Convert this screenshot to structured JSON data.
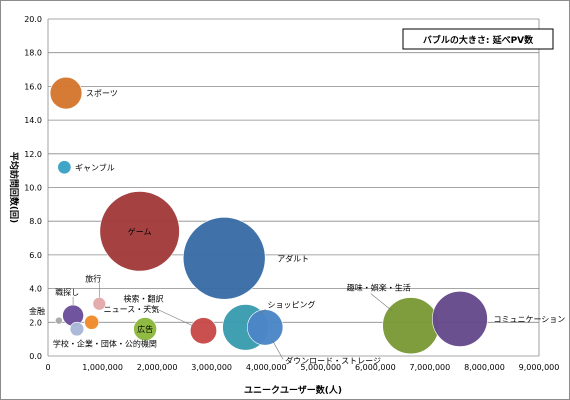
{
  "chart_data": {
    "type": "scatter",
    "subtype": "bubble",
    "title": "",
    "xlabel": "ユニークユーザー数(人)",
    "ylabel": "平均訪問回数(回)",
    "size_note": "バブルの大きさ: 延べPV数",
    "xlim": [
      0,
      9000000
    ],
    "ylim": [
      0,
      20
    ],
    "grid": "horizontal",
    "x_ticks": [
      "0",
      "1,000,000",
      "2,000,000",
      "3,000,000",
      "4,000,000",
      "5,000,000",
      "6,000,000",
      "7,000,000",
      "8,000,000",
      "9,000,000"
    ],
    "y_ticks": [
      "0.0",
      "2.0",
      "4.0",
      "6.0",
      "8.0",
      "10.0",
      "12.0",
      "14.0",
      "16.0",
      "18.0",
      "20.0"
    ],
    "points": [
      {
        "label": "スポーツ",
        "x": 330000,
        "y": 15.6,
        "size": 0.8,
        "color": "#d5772f"
      },
      {
        "label": "ギャンブル",
        "x": 300000,
        "y": 11.2,
        "size": 0.14,
        "color": "#3aa2c5"
      },
      {
        "label": "ゲーム",
        "x": 1680000,
        "y": 7.4,
        "size": 5.0,
        "color": "#a23b3b"
      },
      {
        "label": "アダルト",
        "x": 3230000,
        "y": 5.8,
        "size": 5.3,
        "color": "#3a6da6"
      },
      {
        "label": "金融",
        "x": 200000,
        "y": 2.1,
        "size": 0.04,
        "color": "#a9a9a9"
      },
      {
        "label": "職探し",
        "x": 460000,
        "y": 2.4,
        "size": 0.35,
        "color": "#6b4f9b"
      },
      {
        "label": "旅行",
        "x": 940000,
        "y": 3.1,
        "size": 0.13,
        "color": "#e3a9a9"
      },
      {
        "label": "学校・企業・団体・公的機関",
        "x": 530000,
        "y": 1.6,
        "size": 0.15,
        "color": "#a8b8d8"
      },
      {
        "label": "ニュース・天気",
        "x": 800000,
        "y": 2.0,
        "size": 0.16,
        "color": "#f08a2a"
      },
      {
        "label": "広告",
        "x": 1780000,
        "y": 1.6,
        "size": 0.42,
        "color": "#8db83f"
      },
      {
        "label": "検索・翻訳",
        "x": 2850000,
        "y": 1.5,
        "size": 0.55,
        "color": "#c84a4a"
      },
      {
        "label": "ショッピング",
        "x": 3620000,
        "y": 1.7,
        "size": 1.65,
        "color": "#3b9cb0"
      },
      {
        "label": "ダウンロード・ストレージ",
        "x": 3980000,
        "y": 1.7,
        "size": 1.0,
        "color": "#4b86c6"
      },
      {
        "label": "趣味・娯楽・生活",
        "x": 6650000,
        "y": 1.8,
        "size": 2.5,
        "color": "#7b9a37"
      },
      {
        "label": "コミュニケーション",
        "x": 7550000,
        "y": 2.2,
        "size": 2.4,
        "color": "#664a8c"
      }
    ]
  }
}
